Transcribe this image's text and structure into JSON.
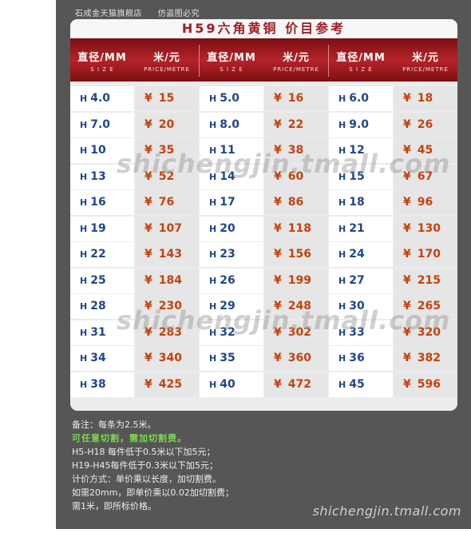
{
  "store": {
    "name": "石成金天猫旗舰店",
    "warning": "仿盗图必究"
  },
  "title": "H59六角黄铜 价目参考",
  "headers": {
    "size_label": "直径/MM",
    "size_sub": "S I Z E",
    "price_label": "米/元",
    "price_sub": "PRICE/METRE"
  },
  "prefix": "H",
  "currency": "¥",
  "table": [
    [
      [
        "4.0",
        "15"
      ],
      [
        "5.0",
        "16"
      ],
      [
        "6.0",
        "18"
      ]
    ],
    [
      [
        "7.0",
        "20"
      ],
      [
        "8.0",
        "22"
      ],
      [
        "9.0",
        "26"
      ]
    ],
    [
      [
        "10",
        "35"
      ],
      [
        "11",
        "38"
      ],
      [
        "12",
        "45"
      ]
    ],
    [
      [
        "13",
        "52"
      ],
      [
        "14",
        "60"
      ],
      [
        "15",
        "67"
      ]
    ],
    [
      [
        "16",
        "76"
      ],
      [
        "17",
        "86"
      ],
      [
        "18",
        "96"
      ]
    ],
    [
      [
        "19",
        "107"
      ],
      [
        "20",
        "118"
      ],
      [
        "21",
        "130"
      ]
    ],
    [
      [
        "22",
        "143"
      ],
      [
        "23",
        "156"
      ],
      [
        "24",
        "170"
      ]
    ],
    [
      [
        "25",
        "184"
      ],
      [
        "26",
        "199"
      ],
      [
        "27",
        "215"
      ]
    ],
    [
      [
        "28",
        "230"
      ],
      [
        "29",
        "248"
      ],
      [
        "30",
        "265"
      ]
    ],
    [
      [
        "31",
        "283"
      ],
      [
        "32",
        "302"
      ],
      [
        "33",
        "320"
      ]
    ],
    [
      [
        "34",
        "340"
      ],
      [
        "35",
        "360"
      ],
      [
        "36",
        "382"
      ]
    ],
    [
      [
        "38",
        "425"
      ],
      [
        "40",
        "472"
      ],
      [
        "45",
        "596"
      ]
    ]
  ],
  "watermark": "shichengjin.tmall.com",
  "notes": [
    "备注：每条为2.5米。",
    "可任意切割，需加切割费。",
    "H5-H18 每件低于0.5米以下加5元；",
    "H19-H45每件低于0.3米以下加5元；",
    "计价方式：单价乘以长度，加切割费。",
    "如需20mm，即单价乘以0.02加切割费；",
    "需1米，即所标价格。"
  ],
  "footer": "shichengjin.tmall.com",
  "colors": {
    "accent_red": "#9e1d22",
    "size_blue": "#21478b",
    "price_orange": "#c4420f",
    "note_green": "#7dd84f"
  }
}
